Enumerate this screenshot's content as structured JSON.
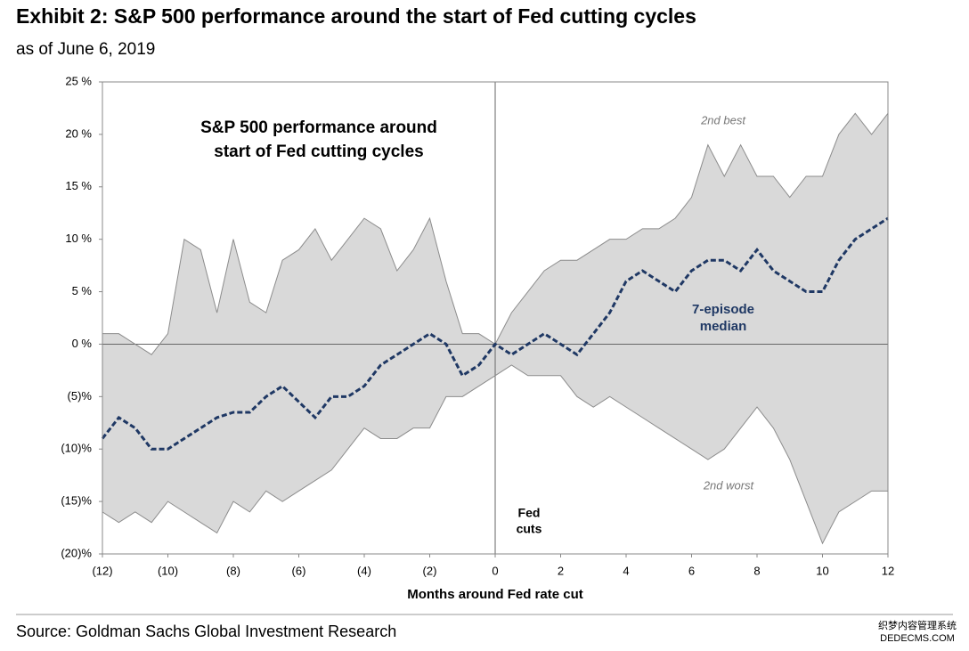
{
  "chart_data": {
    "type": "band-line",
    "title": "Exhibit 2: S&P 500 performance around the start of Fed cutting cycles",
    "subtitle": "as of June 6, 2019",
    "inner_title": [
      "S&P 500 performance around",
      "start of Fed cutting cycles"
    ],
    "x_label": "Months around Fed rate cut",
    "event_label": [
      "Fed",
      "cuts"
    ],
    "source": "Source: Goldman Sachs Global Investment Research",
    "watermark": [
      "织梦内容管理系统",
      "DEDECMS.COM"
    ],
    "x": [
      -12,
      -11.5,
      -11,
      -10.5,
      -10,
      -9.5,
      -9,
      -8.5,
      -8,
      -7.5,
      -7,
      -6.5,
      -6,
      -5.5,
      -5,
      -4.5,
      -4,
      -3.5,
      -3,
      -2.5,
      -2,
      -1.5,
      -1,
      -0.5,
      0,
      0.5,
      1,
      1.5,
      2,
      2.5,
      3,
      3.5,
      4,
      4.5,
      5,
      5.5,
      6,
      6.5,
      7,
      7.5,
      8,
      8.5,
      9,
      9.5,
      10,
      10.5,
      11,
      11.5,
      12
    ],
    "series": [
      {
        "name": "2nd best",
        "color": "#8c8c8c",
        "values": [
          1,
          1,
          0,
          -1,
          1,
          10,
          9,
          3,
          10,
          4,
          3,
          8,
          9,
          11,
          8,
          10,
          12,
          11,
          7,
          9,
          12,
          6,
          1,
          1,
          0,
          3,
          5,
          7,
          8,
          8,
          9,
          10,
          10,
          11,
          11,
          12,
          14,
          19,
          16,
          19,
          16,
          16,
          14,
          16,
          16,
          20,
          22,
          20,
          22
        ]
      },
      {
        "name": "2nd worst",
        "color": "#8c8c8c",
        "values": [
          -16,
          -17,
          -16,
          -17,
          -15,
          -16,
          -17,
          -18,
          -15,
          -16,
          -14,
          -15,
          -14,
          -13,
          -12,
          -10,
          -8,
          -9,
          -9,
          -8,
          -8,
          -5,
          -5,
          -4,
          -3,
          -2,
          -3,
          -3,
          -3,
          -5,
          -6,
          -5,
          -6,
          -7,
          -8,
          -9,
          -10,
          -11,
          -10,
          -8,
          -6,
          -8,
          -11,
          -15,
          -19,
          -16,
          -15,
          -14,
          -14
        ]
      },
      {
        "name_lines": [
          "7-episode",
          "median"
        ],
        "color": "#1f3864",
        "values": [
          -9,
          -7,
          -8,
          -10,
          -10,
          -9,
          -8,
          -7,
          -6.5,
          -6.5,
          -5,
          -4,
          -5.5,
          -7,
          -5,
          -5,
          -4,
          -2,
          -1,
          0,
          1,
          0,
          -3,
          -2,
          0,
          -1,
          0,
          1,
          0,
          -1,
          1,
          3,
          6,
          7,
          6,
          5,
          7,
          8,
          8,
          7,
          9,
          7,
          6,
          5,
          5,
          8,
          10,
          11,
          12
        ]
      }
    ],
    "band_fill": "#d9d9d9",
    "xlim": [
      -12,
      12
    ],
    "xticks": [
      {
        "value": -12,
        "label": "(12)"
      },
      {
        "value": -10,
        "label": "(10)"
      },
      {
        "value": -8,
        "label": "(8)"
      },
      {
        "value": -6,
        "label": "(6)"
      },
      {
        "value": -4,
        "label": "(4)"
      },
      {
        "value": -2,
        "label": "(2)"
      },
      0,
      2,
      4,
      6,
      8,
      10,
      12
    ],
    "ylim": [
      -20,
      25
    ],
    "yticks": [
      {
        "value": -20,
        "label": "(20)%"
      },
      {
        "value": -15,
        "label": "(15)%"
      },
      {
        "value": -10,
        "label": "(10)%"
      },
      {
        "value": -5,
        "label": "(5)%"
      },
      {
        "value": 0,
        "label": "0 %"
      },
      {
        "value": 5,
        "label": "5 %"
      },
      {
        "value": 10,
        "label": "10 %"
      },
      {
        "value": 15,
        "label": "15 %"
      },
      {
        "value": 20,
        "label": "20 %"
      },
      {
        "value": 25,
        "label": "25 %"
      }
    ]
  }
}
